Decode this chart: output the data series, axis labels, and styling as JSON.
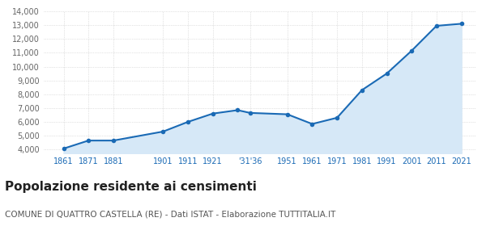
{
  "years": [
    1861,
    1871,
    1881,
    1901,
    1911,
    1921,
    1931,
    1936,
    1951,
    1961,
    1971,
    1981,
    1991,
    2001,
    2011,
    2021
  ],
  "population": [
    4070,
    4650,
    4650,
    5300,
    6000,
    6600,
    6850,
    6650,
    6550,
    5850,
    6300,
    8300,
    9500,
    11150,
    12950,
    13100
  ],
  "ylim_bottom": 3700,
  "ylim_top": 14000,
  "xlim_left": 1853,
  "xlim_right": 2027,
  "yticks": [
    4000,
    5000,
    6000,
    7000,
    8000,
    9000,
    10000,
    11000,
    12000,
    13000,
    14000
  ],
  "xtick_years": [
    1861,
    1871,
    1881,
    1901,
    1911,
    1921,
    1936,
    1951,
    1961,
    1971,
    1981,
    1991,
    2001,
    2011,
    2021
  ],
  "xtick_labels": [
    "1861",
    "1871",
    "1881",
    "1901",
    "1911",
    "1921",
    "'31'36",
    "1951",
    "1961",
    "1971",
    "1981",
    "1991",
    "2001",
    "2011",
    "2021"
  ],
  "line_color": "#1a6ab5",
  "fill_color": "#d6e8f7",
  "marker_color": "#1a6ab5",
  "bg_color": "#ffffff",
  "grid_color": "#c8c8c8",
  "tick_label_color": "#1a6ab5",
  "ytick_color": "#666666",
  "title": "Popolazione residente ai censimenti",
  "subtitle": "COMUNE DI QUATTRO CASTELLA (RE) - Dati ISTAT - Elaborazione TUTTITALIA.IT",
  "title_fontsize": 11,
  "subtitle_fontsize": 7.5
}
